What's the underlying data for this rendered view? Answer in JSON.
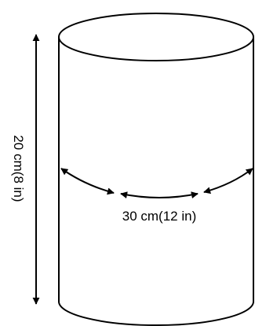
{
  "height_label": "20 cm(8 in)",
  "circumference_label": "30 cm(12 in)",
  "colors": {
    "stroke": "#000000",
    "background": "#ffffff"
  }
}
